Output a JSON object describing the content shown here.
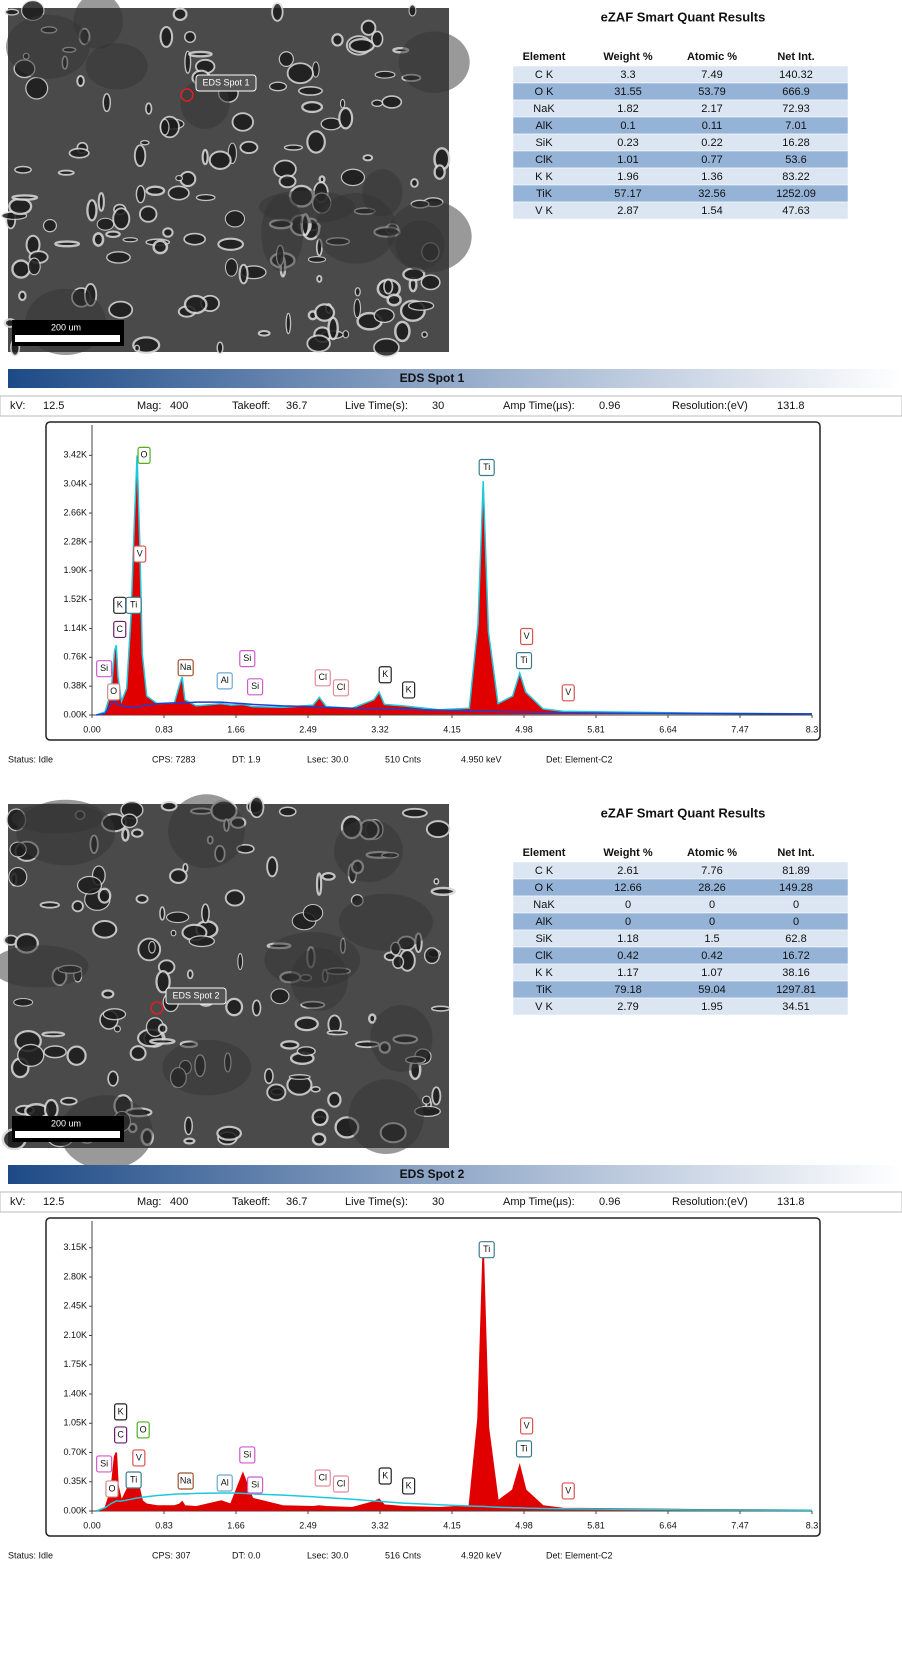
{
  "panels": [
    {
      "image": {
        "spot_label": "EDS Spot 1",
        "scale_bar": "200 um"
      },
      "table": {
        "title": "eZAF Smart Quant Results",
        "columns": [
          "Element",
          "Weight %",
          "Atomic %",
          "Net Int."
        ],
        "rows": [
          [
            "C K",
            "3.3",
            "7.49",
            "140.32"
          ],
          [
            "O K",
            "31.55",
            "53.79",
            "666.9"
          ],
          [
            "NaK",
            "1.82",
            "2.17",
            "72.93"
          ],
          [
            "AlK",
            "0.1",
            "0.11",
            "7.01"
          ],
          [
            "SiK",
            "0.23",
            "0.22",
            "16.28"
          ],
          [
            "ClK",
            "1.01",
            "0.77",
            "53.6"
          ],
          [
            "K K",
            "1.96",
            "1.36",
            "83.22"
          ],
          [
            "TiK",
            "57.17",
            "32.56",
            "1252.09"
          ],
          [
            "V K",
            "2.87",
            "1.54",
            "47.63"
          ]
        ]
      },
      "header": {
        "title": "EDS Spot 1",
        "fields": [
          {
            "label": "kV:",
            "value": "12.5"
          },
          {
            "label": "Mag:",
            "value": "400"
          },
          {
            "label": "Takeoff:",
            "value": "36.7"
          },
          {
            "label": "Live Time(s):",
            "value": "30"
          },
          {
            "label": "Amp Time(µs):",
            "value": "0.96"
          },
          {
            "label": "Resolution:(eV)",
            "value": "131.8"
          }
        ]
      },
      "status": [
        "Status: Idle",
        "CPS: 7283",
        "DT: 1.9",
        "Lsec: 30.0",
        "510 Cnts",
        "4.950 keV",
        "Det: Element-C2"
      ]
    },
    {
      "image": {
        "spot_label": "EDS Spot 2",
        "scale_bar": "200 um"
      },
      "table": {
        "title": "eZAF Smart Quant Results",
        "columns": [
          "Element",
          "Weight %",
          "Atomic %",
          "Net Int."
        ],
        "rows": [
          [
            "C K",
            "2.61",
            "7.76",
            "81.89"
          ],
          [
            "O K",
            "12.66",
            "28.26",
            "149.28"
          ],
          [
            "NaK",
            "0",
            "0",
            "0"
          ],
          [
            "AlK",
            "0",
            "0",
            "0"
          ],
          [
            "SiK",
            "1.18",
            "1.5",
            "62.8"
          ],
          [
            "ClK",
            "0.42",
            "0.42",
            "16.72"
          ],
          [
            "K K",
            "1.17",
            "1.07",
            "38.16"
          ],
          [
            "TiK",
            "79.18",
            "59.04",
            "1297.81"
          ],
          [
            "V K",
            "2.79",
            "1.95",
            "34.51"
          ]
        ]
      },
      "header": {
        "title": "EDS Spot 2",
        "fields": [
          {
            "label": "kV:",
            "value": "12.5"
          },
          {
            "label": "Mag:",
            "value": "400"
          },
          {
            "label": "Takeoff:",
            "value": "36.7"
          },
          {
            "label": "Live Time(s):",
            "value": "30"
          },
          {
            "label": "Amp Time(µs):",
            "value": "0.96"
          },
          {
            "label": "Resolution:(eV)",
            "value": "131.8"
          }
        ]
      },
      "status": [
        "Status: Idle",
        "CPS: 307",
        "DT: 0.0",
        "Lsec: 30.0",
        "516 Cnts",
        "4.920 keV",
        "Det: Element-C2"
      ]
    }
  ],
  "chart_data": [
    {
      "type": "area",
      "x": [
        0.05,
        0.15,
        0.22,
        0.26,
        0.28,
        0.3,
        0.34,
        0.4,
        0.45,
        0.49,
        0.52,
        0.55,
        0.58,
        0.63,
        0.75,
        0.95,
        1.01,
        1.04,
        1.07,
        1.2,
        1.49,
        1.6,
        1.74,
        1.85,
        2.2,
        2.55,
        2.62,
        2.7,
        3.0,
        3.25,
        3.31,
        3.37,
        3.59,
        4.0,
        4.35,
        4.45,
        4.51,
        4.57,
        4.68,
        4.85,
        4.93,
        5.0,
        5.2,
        5.43,
        6.0,
        7.0,
        8.3
      ],
      "series": [
        {
          "color": "#e00000",
          "line_color": "#1fc8dc",
          "fill": true,
          "values": [
            0,
            40,
            300,
            850,
            920,
            500,
            180,
            350,
            1300,
            2600,
            3420,
            2300,
            800,
            250,
            150,
            160,
            400,
            500,
            200,
            120,
            150,
            130,
            140,
            110,
            100,
            130,
            230,
            110,
            90,
            200,
            300,
            140,
            120,
            70,
            90,
            1200,
            3080,
            1100,
            150,
            250,
            550,
            300,
            80,
            50,
            40,
            25,
            15
          ]
        },
        {
          "color": "#1f3fd0",
          "fill": false,
          "values": [
            0,
            20,
            150,
            180,
            160,
            130,
            120,
            110,
            100,
            100,
            100,
            110,
            120,
            130,
            150,
            160,
            160,
            160,
            160,
            170,
            170,
            160,
            150,
            140,
            120,
            110,
            105,
            100,
            90,
            85,
            85,
            80,
            75,
            65,
            55,
            50,
            50,
            50,
            45,
            40,
            38,
            36,
            32,
            30,
            25,
            20,
            15
          ]
        }
      ],
      "xlim": [
        0,
        8.3
      ],
      "ylim": [
        0,
        3820
      ],
      "xticks": [
        {
          "value": 0,
          "label": "0.00"
        },
        0.83,
        1.66,
        2.49,
        3.32,
        4.15,
        4.98,
        5.81,
        6.64,
        7.47,
        8.3
      ],
      "yticks": [
        {
          "value": 0,
          "label": "0.00K"
        },
        {
          "value": 380,
          "label": "0.38K"
        },
        {
          "value": 760,
          "label": "0.76K"
        },
        {
          "value": 1140,
          "label": "1.14K"
        },
        {
          "value": 1520,
          "label": "1.52K"
        },
        {
          "value": 1900,
          "label": "1.90K"
        },
        {
          "value": 2280,
          "label": "2.28K"
        },
        {
          "value": 2660,
          "label": "2.66K"
        },
        {
          "value": 3040,
          "label": "3.04K"
        },
        {
          "value": 3420,
          "label": "3.42K"
        }
      ],
      "peak_labels": [
        {
          "text": "O",
          "x": 0.6,
          "y": 3420,
          "color": "#4caf1e"
        },
        {
          "text": "V",
          "x": 0.55,
          "y": 2120,
          "color": "#d9534f"
        },
        {
          "text": "K",
          "x": 0.32,
          "y": 1445,
          "color": "#222222"
        },
        {
          "text": "Ti",
          "x": 0.48,
          "y": 1445,
          "color": "#3a7c8c"
        },
        {
          "text": "C",
          "x": 0.32,
          "y": 1127,
          "color": "#6a1b6a"
        },
        {
          "text": "Si",
          "x": 0.14,
          "y": 610,
          "color": "#d05ad0"
        },
        {
          "text": "O",
          "x": 0.25,
          "y": 305,
          "color": "#c89090"
        },
        {
          "text": "Na",
          "x": 1.08,
          "y": 623,
          "color": "#a0522d"
        },
        {
          "text": "Al",
          "x": 1.53,
          "y": 450,
          "color": "#6aa9d6"
        },
        {
          "text": "Si",
          "x": 1.79,
          "y": 743,
          "color": "#d05ad0"
        },
        {
          "text": "Si",
          "x": 1.88,
          "y": 371,
          "color": "#d05ad0"
        },
        {
          "text": "Cl",
          "x": 2.66,
          "y": 490,
          "color": "#e28a9a"
        },
        {
          "text": "Cl",
          "x": 2.87,
          "y": 358,
          "color": "#e28a9a"
        },
        {
          "text": "K",
          "x": 3.38,
          "y": 530,
          "color": "#222222"
        },
        {
          "text": "K",
          "x": 3.65,
          "y": 330,
          "color": "#222222"
        },
        {
          "text": "Ti",
          "x": 4.55,
          "y": 3260,
          "color": "#3a7c8c"
        },
        {
          "text": "V",
          "x": 5.01,
          "y": 1034,
          "color": "#d9534f"
        },
        {
          "text": "Ti",
          "x": 4.98,
          "y": 716,
          "color": "#3a7c8c"
        },
        {
          "text": "V",
          "x": 5.49,
          "y": 292,
          "color": "#d9534f"
        }
      ]
    },
    {
      "type": "area",
      "x": [
        0.05,
        0.15,
        0.22,
        0.26,
        0.28,
        0.3,
        0.34,
        0.4,
        0.45,
        0.49,
        0.52,
        0.55,
        0.58,
        0.63,
        0.75,
        0.95,
        1.01,
        1.04,
        1.07,
        1.2,
        1.49,
        1.6,
        1.74,
        1.85,
        2.2,
        2.55,
        2.62,
        2.7,
        3.0,
        3.25,
        3.31,
        3.37,
        3.59,
        4.0,
        4.35,
        4.45,
        4.51,
        4.57,
        4.68,
        4.85,
        4.93,
        5.0,
        5.2,
        5.43,
        6.0,
        7.0,
        8.3
      ],
      "series": [
        {
          "color": "#e00000",
          "line_color": "#e00000",
          "fill": true,
          "values": [
            0,
            30,
            250,
            650,
            700,
            300,
            120,
            250,
            350,
            300,
            450,
            250,
            120,
            80,
            60,
            60,
            80,
            110,
            60,
            50,
            120,
            80,
            450,
            150,
            60,
            50,
            60,
            50,
            40,
            110,
            140,
            70,
            50,
            40,
            60,
            1100,
            3120,
            1000,
            120,
            250,
            540,
            250,
            60,
            30,
            25,
            15,
            10
          ]
        },
        {
          "color": "#1fc8dc",
          "fill": false,
          "values": [
            0,
            40,
            90,
            110,
            120,
            120,
            120,
            130,
            140,
            150,
            155,
            160,
            165,
            170,
            185,
            200,
            205,
            205,
            205,
            210,
            215,
            215,
            210,
            205,
            190,
            170,
            165,
            160,
            140,
            120,
            115,
            110,
            95,
            75,
            60,
            55,
            55,
            50,
            45,
            40,
            38,
            35,
            30,
            27,
            20,
            12,
            8
          ]
        }
      ],
      "xlim": [
        0,
        8.3
      ],
      "ylim": [
        0,
        3470
      ],
      "xticks": [
        {
          "value": 0,
          "label": "0.00"
        },
        0.83,
        1.66,
        2.49,
        3.32,
        4.15,
        4.98,
        5.81,
        6.64,
        7.47,
        8.3
      ],
      "yticks": [
        {
          "value": 0,
          "label": "0.00K"
        },
        {
          "value": 350,
          "label": "0.35K"
        },
        {
          "value": 700,
          "label": "0.70K"
        },
        {
          "value": 1050,
          "label": "1.05K"
        },
        {
          "value": 1400,
          "label": "1.40K"
        },
        {
          "value": 1750,
          "label": "1.75K"
        },
        {
          "value": 2100,
          "label": "2.10K"
        },
        {
          "value": 2450,
          "label": "2.45K"
        },
        {
          "value": 2800,
          "label": "2.80K"
        },
        {
          "value": 3150,
          "label": "3.15K"
        }
      ],
      "peak_labels": [
        {
          "text": "K",
          "x": 0.33,
          "y": 1186,
          "color": "#222222"
        },
        {
          "text": "C",
          "x": 0.33,
          "y": 910,
          "color": "#6a1b6a"
        },
        {
          "text": "O",
          "x": 0.59,
          "y": 970,
          "color": "#4caf1e"
        },
        {
          "text": "V",
          "x": 0.54,
          "y": 635,
          "color": "#d9534f"
        },
        {
          "text": "Si",
          "x": 0.14,
          "y": 563,
          "color": "#d05ad0"
        },
        {
          "text": "O",
          "x": 0.23,
          "y": 264,
          "color": "#c89090"
        },
        {
          "text": "Ti",
          "x": 0.48,
          "y": 371,
          "color": "#3a7c8c"
        },
        {
          "text": "Na",
          "x": 1.08,
          "y": 359,
          "color": "#a0522d"
        },
        {
          "text": "Al",
          "x": 1.53,
          "y": 335,
          "color": "#6aa9d6"
        },
        {
          "text": "Si",
          "x": 1.79,
          "y": 671,
          "color": "#d05ad0"
        },
        {
          "text": "Si",
          "x": 1.88,
          "y": 311,
          "color": "#d05ad0"
        },
        {
          "text": "Cl",
          "x": 2.66,
          "y": 395,
          "color": "#e28a9a"
        },
        {
          "text": "Cl",
          "x": 2.87,
          "y": 323,
          "color": "#e28a9a"
        },
        {
          "text": "K",
          "x": 3.38,
          "y": 419,
          "color": "#222222"
        },
        {
          "text": "K",
          "x": 3.65,
          "y": 300,
          "color": "#222222"
        },
        {
          "text": "Ti",
          "x": 4.55,
          "y": 3127,
          "color": "#3a7c8c"
        },
        {
          "text": "V",
          "x": 5.01,
          "y": 1018,
          "color": "#d9534f"
        },
        {
          "text": "Ti",
          "x": 4.98,
          "y": 743,
          "color": "#3a7c8c"
        },
        {
          "text": "V",
          "x": 5.49,
          "y": 240,
          "color": "#d9534f"
        }
      ]
    }
  ]
}
